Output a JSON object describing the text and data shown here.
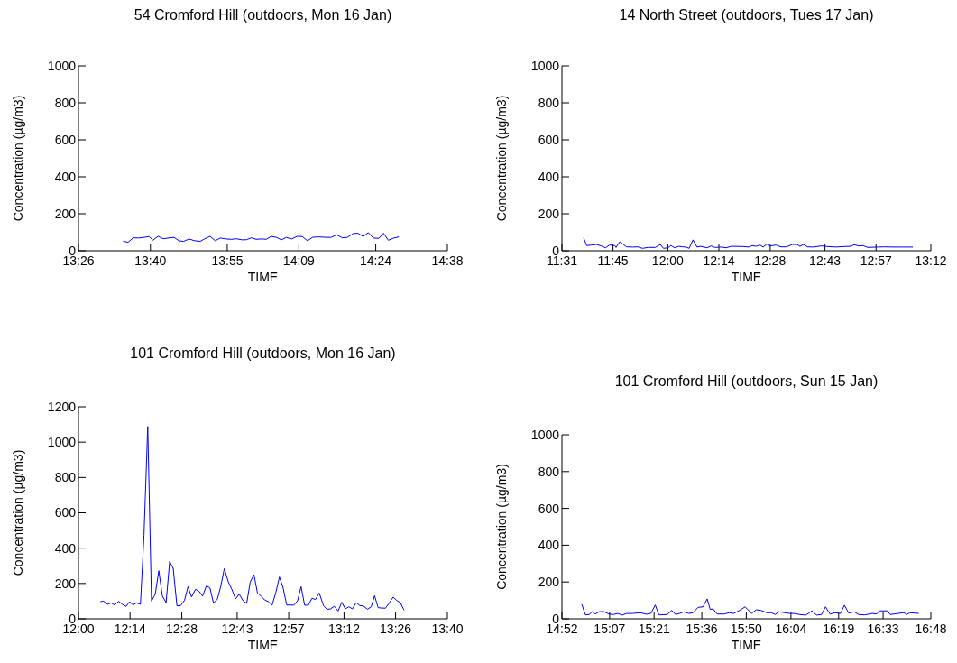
{
  "chart_data": [
    {
      "type": "line",
      "title": "54 Cromford Hill (outdoors, Mon 16 Jan)",
      "xlabel": "TIME",
      "ylabel": "Concentration (µg/m3)",
      "color": "#0000ff",
      "xlim": [
        13.433,
        14.633
      ],
      "ylim": [
        0,
        1000
      ],
      "yticks": [
        0,
        200,
        400,
        600,
        800,
        1000
      ],
      "xticks": [
        {
          "value": 13.433,
          "label": "13:26"
        },
        {
          "value": 13.667,
          "label": "13:40"
        },
        {
          "value": 13.917,
          "label": "13:55"
        },
        {
          "value": 14.15,
          "label": "14:09"
        },
        {
          "value": 14.4,
          "label": "14:24"
        },
        {
          "value": 14.633,
          "label": "14:38"
        }
      ],
      "x": [
        13.578,
        13.594,
        13.611,
        13.628,
        13.648,
        13.663,
        13.675,
        13.692,
        13.709,
        13.726,
        13.744,
        13.76,
        13.775,
        13.793,
        13.809,
        13.829,
        13.843,
        13.861,
        13.878,
        13.894,
        13.912,
        13.931,
        13.946,
        13.966,
        13.98,
        13.995,
        14.011,
        14.029,
        14.044,
        14.06,
        14.078,
        14.093,
        14.109,
        14.127,
        14.144,
        14.161,
        14.178,
        14.195,
        14.215,
        14.234,
        14.254,
        14.273,
        14.291,
        14.307,
        14.327,
        14.342,
        14.359,
        14.376,
        14.392,
        14.41,
        14.425,
        14.441,
        14.459,
        14.475
      ],
      "values": [
        52,
        46,
        70,
        69,
        73,
        77,
        57,
        78,
        65,
        69,
        72,
        54,
        51,
        64,
        55,
        51,
        64,
        78,
        54,
        69,
        64,
        62,
        65,
        59,
        60,
        70,
        62,
        64,
        62,
        78,
        72,
        59,
        72,
        64,
        78,
        77,
        54,
        73,
        75,
        73,
        72,
        86,
        70,
        72,
        93,
        95,
        77,
        98,
        69,
        67,
        95,
        57,
        69,
        75
      ]
    },
    {
      "type": "line",
      "title": "14 North Street (outdoors, Tues 17 Jan)",
      "xlabel": "TIME",
      "ylabel": "Concentration (µg/m3)",
      "color": "#0000ff",
      "xlim": [
        11.517,
        13.2
      ],
      "ylim": [
        0,
        1000
      ],
      "yticks": [
        0,
        200,
        400,
        600,
        800,
        1000
      ],
      "xticks": [
        {
          "value": 11.517,
          "label": "11:31"
        },
        {
          "value": 11.75,
          "label": "11:45"
        },
        {
          "value": 12,
          "label": "12:00"
        },
        {
          "value": 12.233,
          "label": "12:14"
        },
        {
          "value": 12.467,
          "label": "12:28"
        },
        {
          "value": 12.717,
          "label": "12:43"
        },
        {
          "value": 12.95,
          "label": "12:57"
        },
        {
          "value": 13.2,
          "label": "13:12"
        }
      ],
      "x": [
        11.616,
        11.63,
        11.652,
        11.675,
        11.696,
        11.716,
        11.734,
        11.758,
        11.764,
        11.781,
        11.812,
        11.84,
        11.863,
        11.885,
        11.909,
        11.943,
        11.966,
        11.98,
        12.001,
        12.014,
        12.032,
        12.05,
        12.067,
        12.083,
        12.097,
        12.115,
        12.133,
        12.149,
        12.179,
        12.197,
        12.215,
        12.245,
        12.266,
        12.289,
        12.341,
        12.369,
        12.385,
        12.403,
        12.421,
        12.435,
        12.451,
        12.468,
        12.493,
        12.517,
        12.541,
        12.568,
        12.589,
        12.603,
        12.619,
        12.637,
        12.664,
        12.699,
        12.726,
        12.767,
        12.809,
        12.836,
        12.85,
        12.87,
        12.891,
        12.912,
        12.96,
        12.987,
        13.028,
        13.07,
        13.118
      ],
      "values": [
        70,
        28,
        31,
        34,
        26,
        16,
        31,
        28,
        18,
        49,
        21,
        20,
        21,
        13,
        18,
        18,
        34,
        13,
        16,
        28,
        16,
        24,
        21,
        20,
        13,
        59,
        20,
        24,
        16,
        26,
        18,
        20,
        16,
        24,
        23,
        20,
        28,
        24,
        31,
        20,
        36,
        26,
        31,
        21,
        21,
        34,
        34,
        24,
        34,
        21,
        20,
        26,
        23,
        20,
        23,
        24,
        33,
        26,
        28,
        18,
        20,
        21,
        20,
        20,
        20
      ]
    },
    {
      "type": "line",
      "title": "101 Cromford Hill (outdoors, Mon 16 Jan)",
      "xlabel": "TIME",
      "ylabel": "Concentration (µg/m3)",
      "color": "#0000ff",
      "xlim": [
        12,
        13.667
      ],
      "ylim": [
        0,
        1200
      ],
      "yticks": [
        0,
        200,
        400,
        600,
        800,
        1000,
        1200
      ],
      "xticks": [
        {
          "value": 12,
          "label": "12:00"
        },
        {
          "value": 12.233,
          "label": "12:14"
        },
        {
          "value": 12.467,
          "label": "12:28"
        },
        {
          "value": 12.717,
          "label": "12:43"
        },
        {
          "value": 12.95,
          "label": "12:57"
        },
        {
          "value": 13.2,
          "label": "13:12"
        },
        {
          "value": 13.433,
          "label": "13:26"
        },
        {
          "value": 13.667,
          "label": "13:40"
        }
      ],
      "x": [
        12.099,
        12.113,
        12.131,
        12.147,
        12.164,
        12.181,
        12.198,
        12.215,
        12.231,
        12.246,
        12.262,
        12.28,
        12.296,
        12.313,
        12.33,
        12.347,
        12.363,
        12.379,
        12.396,
        12.412,
        12.428,
        12.445,
        12.462,
        12.479,
        12.495,
        12.511,
        12.529,
        12.545,
        12.561,
        12.578,
        12.594,
        12.61,
        12.627,
        12.643,
        12.659,
        12.677,
        12.693,
        12.71,
        12.726,
        12.744,
        12.76,
        12.776,
        12.793,
        12.809,
        12.825,
        12.841,
        12.858,
        12.875,
        12.892,
        12.908,
        12.924,
        12.941,
        12.957,
        12.973,
        12.99,
        13.006,
        13.022,
        13.039,
        13.055,
        13.071,
        13.088,
        13.107,
        13.123,
        13.139,
        13.156,
        13.173,
        13.19,
        13.206,
        13.222,
        13.238,
        13.255,
        13.271,
        13.287,
        13.306,
        13.323,
        13.338,
        13.354,
        13.37,
        13.387,
        13.403,
        13.422,
        13.438,
        13.455,
        13.471
      ],
      "values": [
        97,
        100,
        82,
        90,
        78,
        99,
        82,
        70,
        97,
        78,
        90,
        82,
        473,
        1089,
        100,
        140,
        272,
        129,
        92,
        325,
        286,
        73,
        75,
        104,
        182,
        123,
        167,
        155,
        129,
        187,
        175,
        89,
        109,
        184,
        284,
        209,
        167,
        112,
        140,
        102,
        87,
        208,
        250,
        145,
        129,
        107,
        97,
        77,
        150,
        237,
        179,
        78,
        78,
        77,
        102,
        182,
        77,
        77,
        116,
        109,
        146,
        75,
        54,
        56,
        71,
        44,
        94,
        56,
        68,
        56,
        92,
        75,
        73,
        54,
        68,
        131,
        63,
        61,
        60,
        87,
        123,
        104,
        90,
        49
      ]
    },
    {
      "type": "line",
      "title": "101 Cromford Hill (outdoors, Sun 15 Jan)",
      "xlabel": "TIME",
      "ylabel": "Concentration (µg/m3)",
      "color": "#0000ff",
      "xlim": [
        14.867,
        16.8
      ],
      "ylim": [
        0,
        1000
      ],
      "yticks": [
        0,
        200,
        400,
        600,
        800,
        1000
      ],
      "xticks": [
        {
          "value": 14.867,
          "label": "14:52"
        },
        {
          "value": 15.117,
          "label": "15:07"
        },
        {
          "value": 15.35,
          "label": "15:21"
        },
        {
          "value": 15.6,
          "label": "15:36"
        },
        {
          "value": 15.833,
          "label": "15:50"
        },
        {
          "value": 16.067,
          "label": "16:04"
        },
        {
          "value": 16.317,
          "label": "16:19"
        },
        {
          "value": 16.55,
          "label": "16:33"
        },
        {
          "value": 16.8,
          "label": "16:48"
        }
      ],
      "x": [
        14.971,
        14.99,
        15.009,
        15.025,
        15.041,
        15.064,
        15.088,
        15.112,
        15.135,
        15.159,
        15.183,
        15.206,
        15.238,
        15.277,
        15.309,
        15.333,
        15.356,
        15.375,
        15.419,
        15.443,
        15.462,
        15.483,
        15.506,
        15.53,
        15.554,
        15.58,
        15.606,
        15.628,
        15.644,
        15.659,
        15.68,
        15.719,
        15.743,
        15.767,
        15.798,
        15.827,
        15.861,
        15.885,
        15.909,
        15.94,
        15.964,
        15.984,
        16.003,
        16.027,
        16.059,
        16.082,
        16.114,
        16.145,
        16.177,
        16.201,
        16.227,
        16.248,
        16.272,
        16.295,
        16.327,
        16.347,
        16.369,
        16.398,
        16.422,
        16.453,
        16.493,
        16.516,
        16.532,
        16.572,
        16.587,
        16.627,
        16.658,
        16.674,
        16.69,
        16.737
      ],
      "values": [
        79,
        21,
        23,
        38,
        26,
        39,
        39,
        26,
        23,
        29,
        20,
        29,
        29,
        33,
        25,
        29,
        75,
        21,
        23,
        46,
        23,
        29,
        38,
        29,
        33,
        62,
        65,
        108,
        51,
        54,
        26,
        26,
        33,
        29,
        46,
        65,
        29,
        49,
        46,
        33,
        33,
        23,
        38,
        34,
        29,
        29,
        23,
        20,
        43,
        20,
        23,
        65,
        25,
        33,
        29,
        74,
        31,
        38,
        23,
        21,
        29,
        26,
        43,
        43,
        23,
        29,
        33,
        23,
        33,
        29
      ]
    }
  ]
}
